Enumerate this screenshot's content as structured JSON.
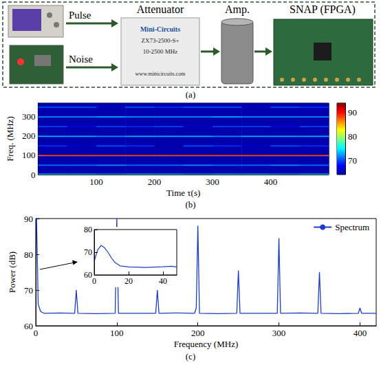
{
  "diagram": {
    "caption": "(a)",
    "sources": [
      {
        "label": "Pulse"
      },
      {
        "label": "Noise"
      }
    ],
    "nodes": [
      {
        "label": "Attenuator",
        "texts": [
          "Mini-Circuits",
          "ZX73-2500-S+",
          "10-2500 MHz",
          "www.minicircuits.com"
        ]
      },
      {
        "label": "Amp."
      },
      {
        "label": "SNAP (FPGA)"
      }
    ]
  },
  "chart_data": [
    {
      "type": "heatmap",
      "caption": "(b)",
      "xlabel": "Time τ(s)",
      "ylabel": "Freq. (MHz)",
      "xlim": [
        0,
        500
      ],
      "xticks": [
        100,
        200,
        300,
        400
      ],
      "ylim": [
        0,
        370
      ],
      "yticks": [
        0,
        100,
        200,
        300
      ],
      "x_bins": [
        0,
        50,
        100,
        150,
        200,
        250,
        300,
        350,
        400,
        450,
        500
      ],
      "y_bins": [
        0,
        6,
        47,
        53,
        97,
        103,
        147,
        153,
        197,
        203,
        247,
        253,
        297,
        303,
        347,
        353,
        370
      ],
      "cells": [
        [
          74,
          74,
          73,
          74,
          74,
          73,
          74,
          74,
          73,
          74
        ],
        [
          65,
          65,
          65,
          65,
          65,
          65,
          65,
          65,
          65,
          65
        ],
        [
          71,
          71,
          72,
          71,
          71,
          72,
          71,
          71,
          72,
          71
        ],
        [
          65,
          65,
          65,
          65,
          65,
          65,
          65,
          65,
          65,
          65
        ],
        [
          88,
          88,
          88,
          88,
          88,
          88,
          88,
          88,
          88,
          88
        ],
        [
          65,
          65,
          65,
          65,
          65,
          65,
          65,
          65,
          65,
          65
        ],
        [
          69,
          66,
          70,
          69,
          65,
          70,
          69,
          66,
          70,
          69
        ],
        [
          65,
          65,
          65,
          65,
          65,
          65,
          65,
          65,
          65,
          65
        ],
        [
          73,
          73,
          72,
          73,
          73,
          73,
          72,
          73,
          73,
          73
        ],
        [
          65,
          65,
          65,
          65,
          65,
          65,
          65,
          65,
          65,
          65
        ],
        [
          70,
          67,
          70,
          69,
          70,
          66,
          70,
          70,
          67,
          70
        ],
        [
          65,
          65,
          65,
          65,
          65,
          65,
          65,
          65,
          65,
          65
        ],
        [
          72,
          72,
          73,
          72,
          72,
          72,
          73,
          72,
          72,
          72
        ],
        [
          65,
          65,
          65,
          65,
          65,
          65,
          65,
          65,
          65,
          65
        ],
        [
          70,
          70,
          66,
          70,
          69,
          70,
          70,
          66,
          70,
          69
        ],
        [
          65,
          65,
          65,
          65,
          65,
          65,
          65,
          65,
          65,
          65
        ]
      ],
      "colorbar": {
        "range": [
          64,
          94
        ],
        "ticks": [
          70,
          80,
          90
        ]
      }
    },
    {
      "type": "line",
      "caption": "(c)",
      "xlabel": "Frequency (MHz)",
      "ylabel": "Power (dB)",
      "xlim": [
        0,
        420
      ],
      "xticks": [
        0,
        100,
        200,
        300,
        400
      ],
      "ylim": [
        60,
        90
      ],
      "yticks": [
        60,
        70,
        80,
        90
      ],
      "legend": "upper right",
      "x": [
        0,
        1,
        3,
        6,
        10,
        30,
        48,
        50,
        52,
        75,
        98,
        100,
        102,
        125,
        148,
        150,
        152,
        175,
        196,
        198,
        200,
        202,
        225,
        248,
        250,
        252,
        275,
        298,
        300,
        302,
        325,
        348,
        350,
        352,
        375,
        398,
        400,
        402,
        420
      ],
      "series": [
        {
          "name": "Spectrum",
          "color": "#1a3cc8",
          "values": [
            90,
            90,
            66,
            64,
            63.5,
            63.6,
            63.5,
            70,
            63.5,
            63.4,
            63.5,
            90,
            63.5,
            63.5,
            63.5,
            70,
            63.5,
            63.6,
            63.5,
            65,
            88,
            63.5,
            63.4,
            63.5,
            75.5,
            63.5,
            63.5,
            63.5,
            84.5,
            63.5,
            63.6,
            63.5,
            75,
            63.5,
            63.4,
            63.5,
            65,
            63.5,
            63.5
          ]
        }
      ],
      "inset": {
        "type": "line",
        "color": "#1a3cc8",
        "xlim": [
          0,
          48
        ],
        "xticks": [
          0,
          20,
          40
        ],
        "ylim": [
          60,
          80
        ],
        "yticks": [
          60,
          70,
          80
        ],
        "x": [
          0,
          2,
          4,
          6,
          8,
          10,
          12,
          15,
          20,
          30,
          40,
          45,
          48
        ],
        "values": [
          66,
          71,
          73,
          72,
          70,
          67.5,
          65.5,
          64,
          63.5,
          63.3,
          63.6,
          63.8,
          63.5
        ]
      }
    }
  ]
}
